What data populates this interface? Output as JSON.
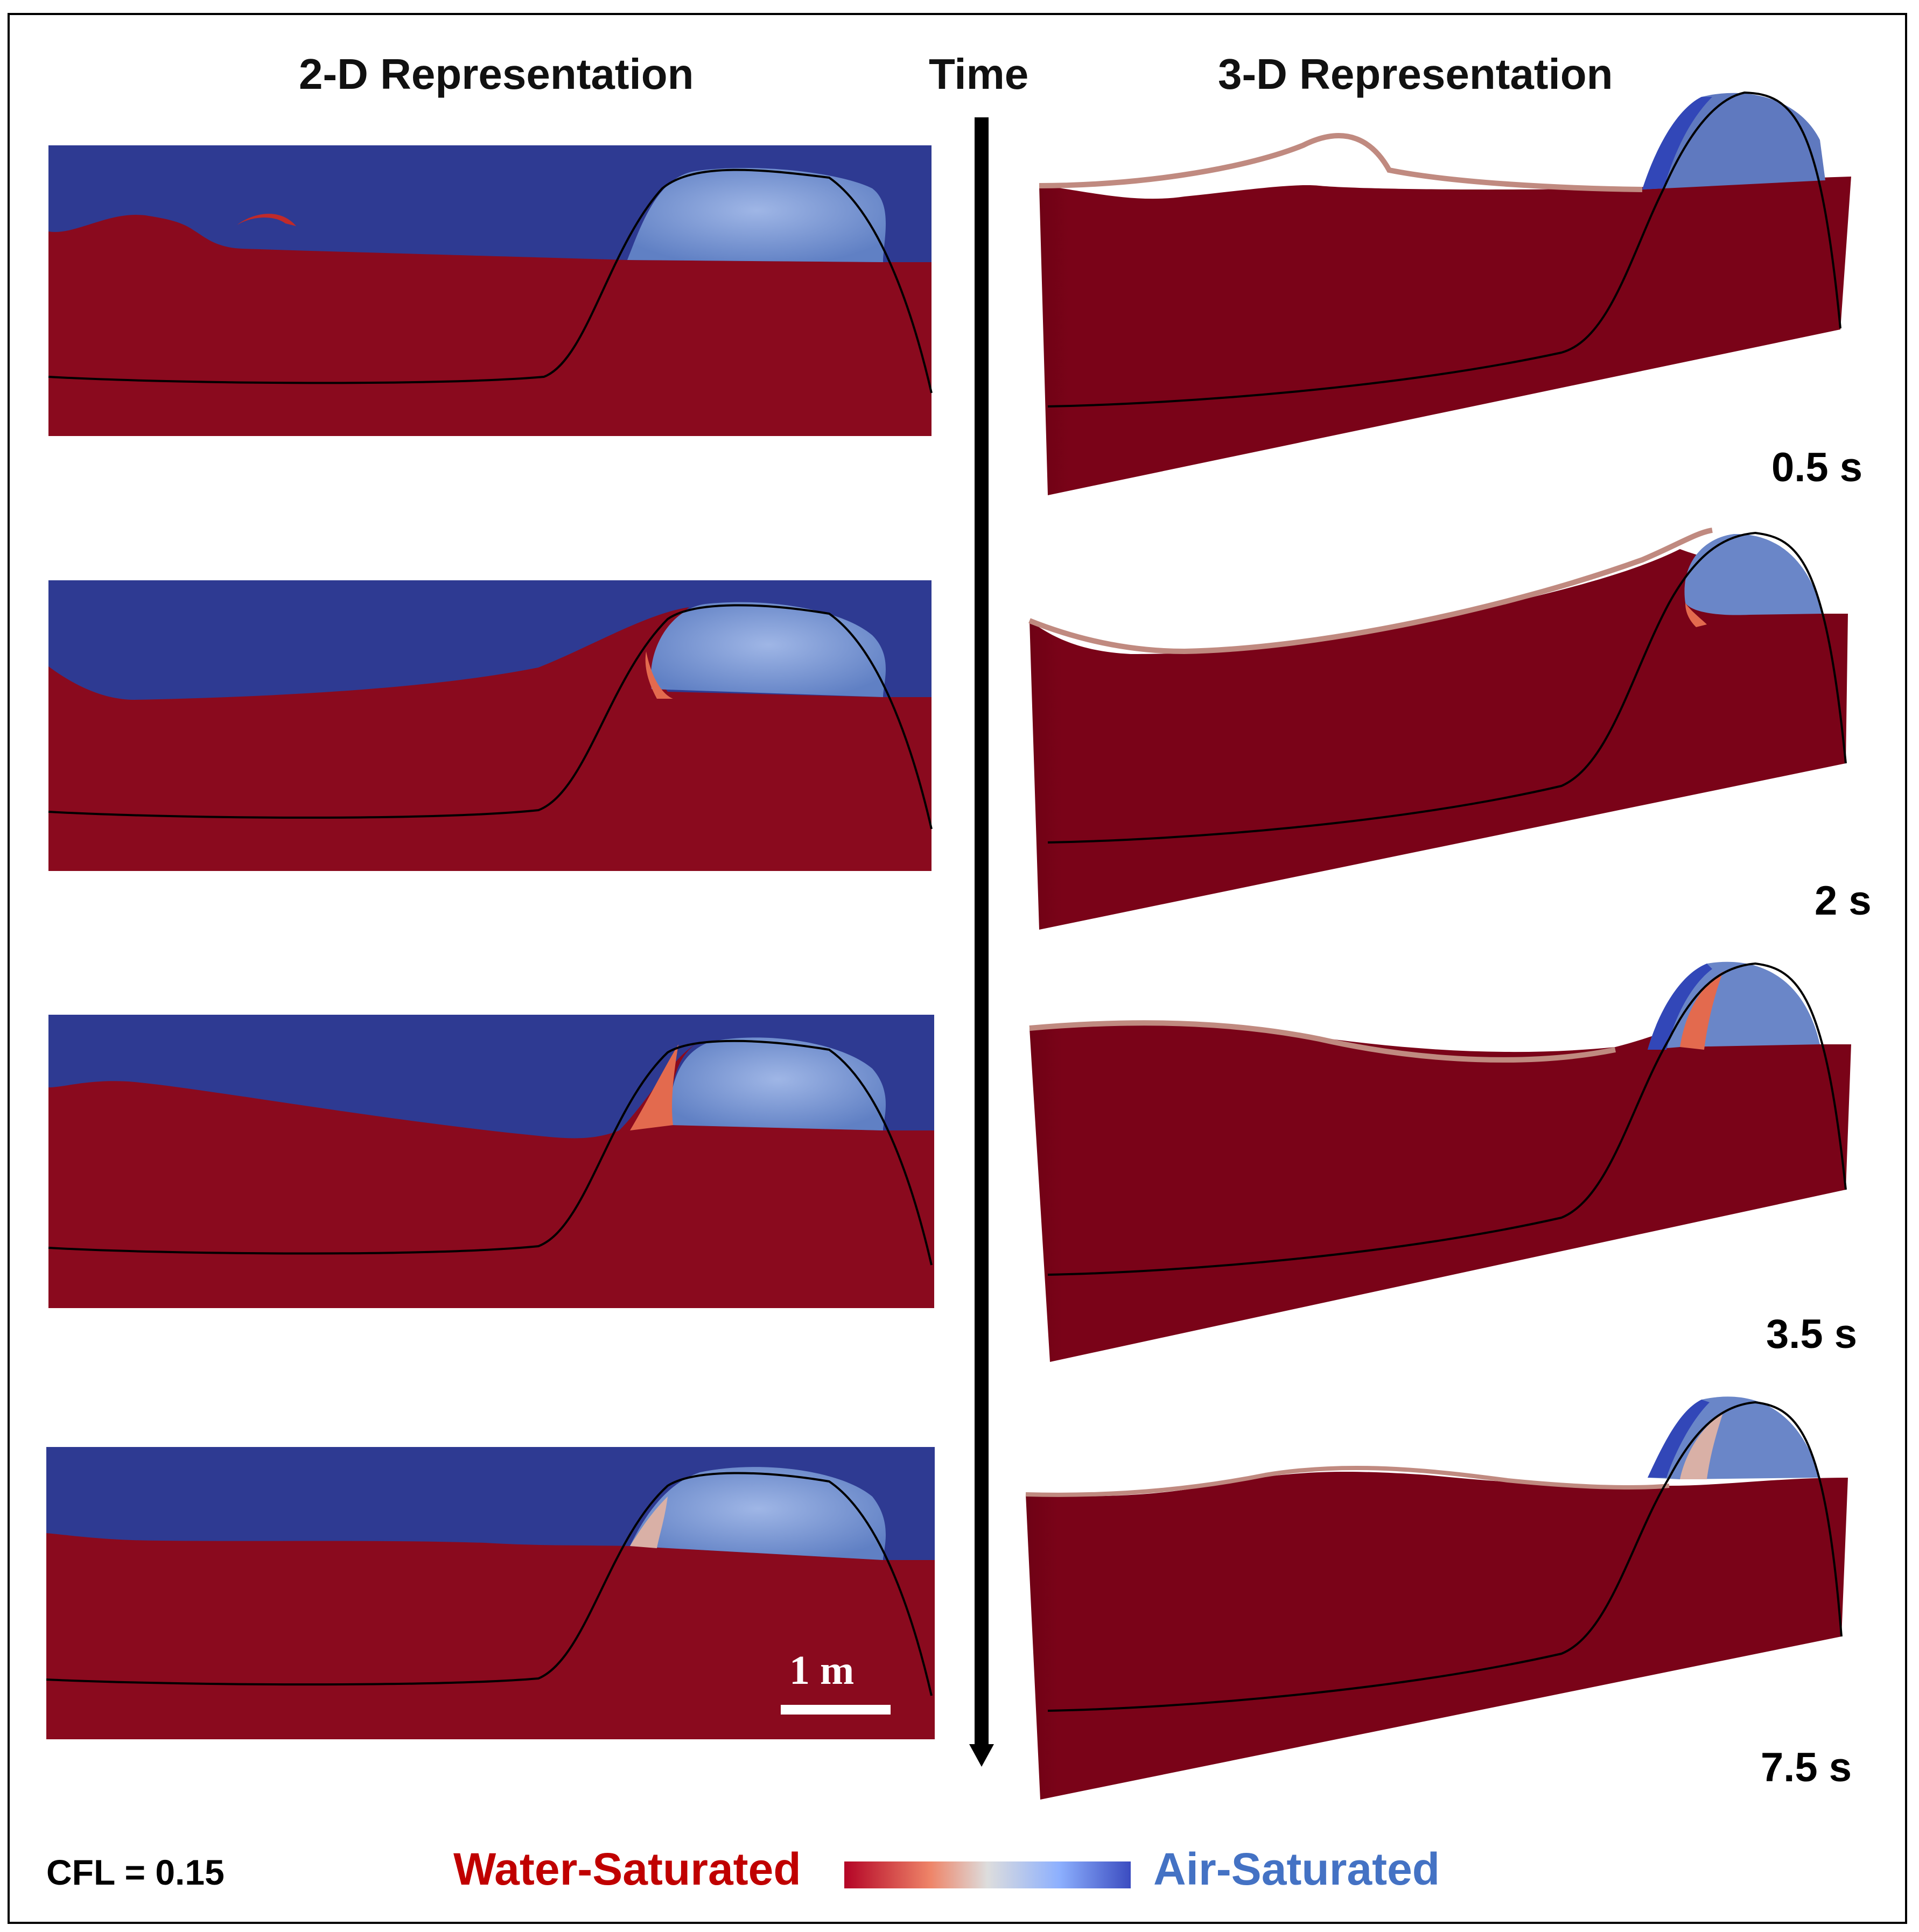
{
  "headers": {
    "left": "2-D Representation",
    "middle": "Time",
    "right": "3-D Representation"
  },
  "time_steps": [
    "0.5 s",
    "2 s",
    "3.5 s",
    "7.5 s"
  ],
  "scale_bar": {
    "label": "1 m"
  },
  "footer": {
    "cfl": "CFL = 0.15",
    "legend_low": "Water-Saturated",
    "legend_high": "Air-Saturated"
  },
  "colors": {
    "water": "#8a0a1e",
    "water_3d": "#7a0318",
    "air": "#2e3a92",
    "air_light": "#6a86c8",
    "legend_low_text": "#c00000",
    "legend_high_text": "#4472c4"
  }
}
